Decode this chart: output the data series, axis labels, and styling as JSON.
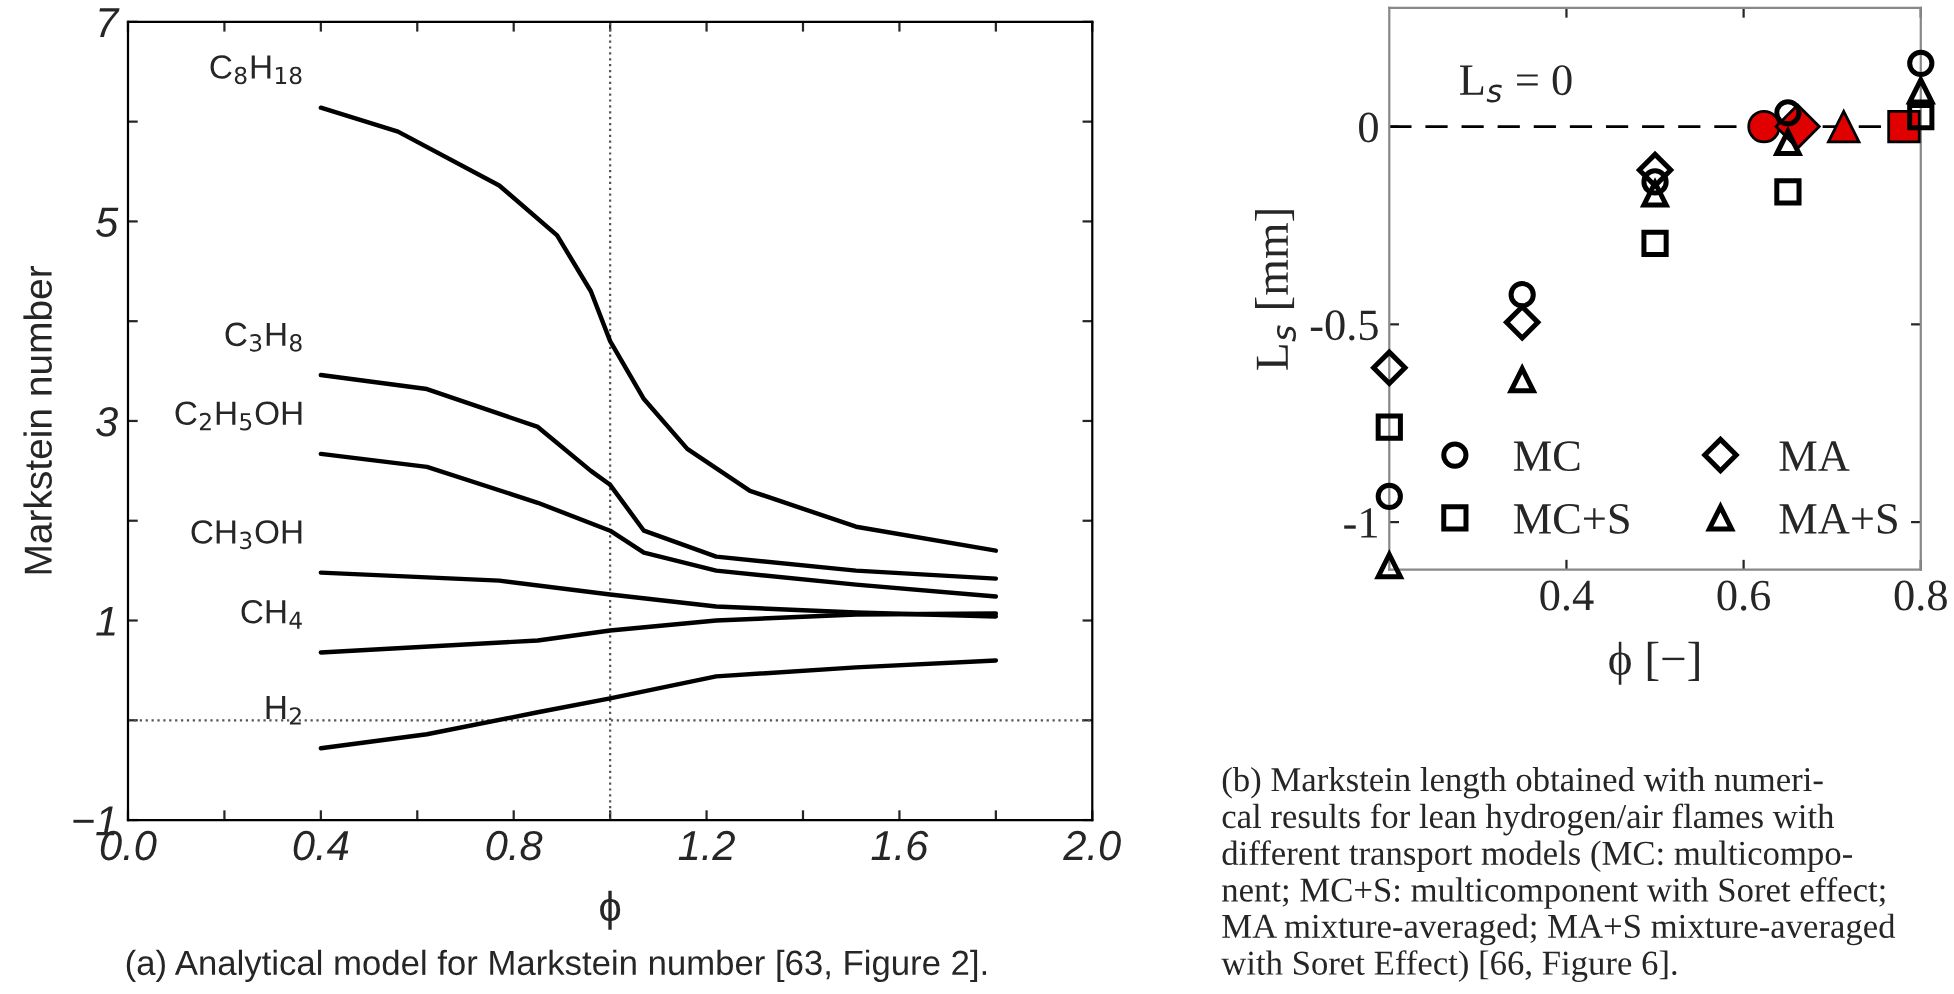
{
  "chart_data": [
    {
      "type": "line",
      "xlabel": "ϕ",
      "ylabel": "Markstein number",
      "xlim": [
        0,
        2
      ],
      "ylim": [
        -1,
        7
      ],
      "xticks": [
        {
          "value": 0,
          "label": "0.0"
        },
        {
          "value": 0.2,
          "label": null
        },
        {
          "value": 0.4,
          "label": "0.4"
        },
        {
          "value": 0.6,
          "label": null
        },
        {
          "value": 0.8,
          "label": "0.8"
        },
        {
          "value": 1.0,
          "label": null
        },
        {
          "value": 1.2,
          "label": "1.2"
        },
        {
          "value": 1.4,
          "label": null
        },
        {
          "value": 1.6,
          "label": "1.6"
        },
        {
          "value": 1.8,
          "label": null
        },
        {
          "value": 2.0,
          "label": "2.0"
        }
      ],
      "yticks": [
        {
          "value": -1,
          "label": "−1"
        },
        {
          "value": 0,
          "label": null
        },
        {
          "value": 1,
          "label": "1"
        },
        {
          "value": 2,
          "label": null
        },
        {
          "value": 3,
          "label": "3"
        },
        {
          "value": 4,
          "label": null
        },
        {
          "value": 5,
          "label": "5"
        },
        {
          "value": 6,
          "label": null
        },
        {
          "value": 7,
          "label": "7"
        }
      ],
      "grid": false,
      "legend": false,
      "line_style": "solid",
      "marker": "none",
      "ref_lines": [
        {
          "axis": "x",
          "value": 1.0,
          "line_style": "dotted",
          "color": "#555555"
        },
        {
          "axis": "y",
          "value": 0,
          "line_style": "dotted",
          "color": "#555555"
        }
      ],
      "series": [
        {
          "name": "C$_{8}$H$_{18}$",
          "color": "#000000",
          "x": [
            0.4,
            0.56,
            0.77,
            0.89,
            0.96,
            1.0,
            1.07,
            1.16,
            1.29,
            1.51,
            1.8
          ],
          "values": [
            6.14,
            5.9,
            5.36,
            4.86,
            4.3,
            3.8,
            3.22,
            2.72,
            2.3,
            1.94,
            1.7
          ]
        },
        {
          "name": "C$_{3}$H$_{8}$",
          "color": "#000000",
          "x": [
            0.4,
            0.62,
            0.85,
            0.96,
            1.0,
            1.07,
            1.22,
            1.51,
            1.8
          ],
          "values": [
            3.46,
            3.32,
            2.94,
            2.5,
            2.36,
            1.9,
            1.64,
            1.5,
            1.42
          ]
        },
        {
          "name": "C$_{2}$H$_{5}$OH",
          "color": "#000000",
          "x": [
            0.4,
            0.62,
            0.85,
            1.0,
            1.07,
            1.22,
            1.51,
            1.8
          ],
          "values": [
            2.67,
            2.54,
            2.18,
            1.9,
            1.68,
            1.5,
            1.36,
            1.24
          ]
        },
        {
          "name": "CH$_{3}$OH",
          "color": "#000000",
          "x": [
            0.4,
            0.77,
            1.0,
            1.22,
            1.51,
            1.8
          ],
          "values": [
            1.48,
            1.4,
            1.26,
            1.14,
            1.08,
            1.04
          ]
        },
        {
          "name": "CH$_{4}$",
          "color": "#000000",
          "x": [
            0.4,
            0.85,
            1.0,
            1.22,
            1.51,
            1.8
          ],
          "values": [
            0.68,
            0.8,
            0.9,
            1.0,
            1.06,
            1.07
          ]
        },
        {
          "name": "H$_{2}$",
          "color": "#000000",
          "x": [
            0.4,
            0.62,
            0.85,
            1.0,
            1.22,
            1.51,
            1.8
          ],
          "values": [
            -0.28,
            -0.14,
            0.08,
            0.22,
            0.44,
            0.53,
            0.6
          ]
        }
      ],
      "annotations": [
        "(a) Analytical model for Markstein number [63, Figure 2]."
      ]
    },
    {
      "type": "scatter",
      "xlabel": "ϕ [−]",
      "ylabel": "L$_{s}$ [mm]",
      "xlim": [
        0.2,
        0.8
      ],
      "ylim": [
        -1.12,
        0.3
      ],
      "xticks": [
        0.4,
        0.6,
        0.8
      ],
      "yticks": [
        {
          "value": -1,
          "label": "-1"
        },
        {
          "value": -0.5,
          "label": "-0.5"
        },
        {
          "value": 0,
          "label": "0"
        }
      ],
      "grid": false,
      "legend": "bottom",
      "ref_lines": [
        {
          "axis": "y",
          "value": 0,
          "label": "L$_{s}$ = 0",
          "line_style": "dashed",
          "color": "#000000"
        }
      ],
      "series": [
        {
          "name": "MC",
          "color": "#000000",
          "marker": "circle",
          "x": [
            0.2,
            0.35,
            0.5,
            0.65,
            0.8
          ],
          "values": [
            -0.935,
            -0.425,
            -0.14,
            0.035,
            0.16
          ]
        },
        {
          "name": "MC+S",
          "color": "#000000",
          "marker": "square",
          "x": [
            0.2,
            0.5,
            0.65,
            0.8
          ],
          "values": [
            -0.76,
            -0.295,
            -0.165,
            0.025
          ]
        },
        {
          "name": "MA",
          "color": "#000000",
          "marker": "diamond",
          "x": [
            0.2,
            0.35,
            0.5
          ],
          "values": [
            -0.61,
            -0.495,
            -0.11
          ]
        },
        {
          "name": "MA+S",
          "color": "#000000",
          "marker": "triangle",
          "x": [
            0.2,
            0.35,
            0.5,
            0.65,
            0.8
          ],
          "values": [
            -1.11,
            -0.64,
            -0.17,
            -0.04,
            0.09
          ]
        },
        {
          "color": "#e00000",
          "marker": "circle",
          "x": [
            0.623
          ],
          "values": [
            0
          ]
        },
        {
          "color": "#e00000",
          "marker": "diamond",
          "x": [
            0.661
          ],
          "values": [
            0
          ]
        },
        {
          "color": "#e00000",
          "marker": "triangle",
          "x": [
            0.713
          ],
          "values": [
            0
          ]
        },
        {
          "color": "#e00000",
          "marker": "square",
          "x": [
            0.781
          ],
          "values": [
            0
          ]
        }
      ],
      "annotations": [
        "(b) Markstein length obtained with numeri-\ncal results for lean hydrogen/air flames with\ndifferent transport models (MC: multicompo-\nnent; MC+S: multicomponent with Soret effect;\nMA mixture-averaged; MA+S mixture-averaged\nwith Soret Effect) [66, Figure 6]."
      ]
    }
  ]
}
